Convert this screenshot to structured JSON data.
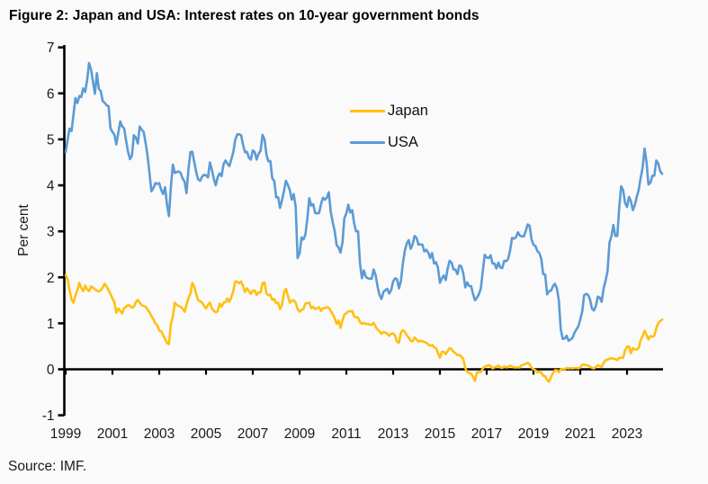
{
  "page": {
    "source": "Source: IMF."
  },
  "chart_data": {
    "type": "line",
    "title": "Figure 2: Japan and USA: Interest rates on 10-year government bonds",
    "xlabel": "",
    "ylabel": "Per cent",
    "x_frequency": "monthly",
    "x_range": [
      1999.0,
      2024.5
    ],
    "ylim": [
      -1,
      7
    ],
    "y_ticks": [
      -1,
      0,
      1,
      2,
      3,
      4,
      5,
      6,
      7
    ],
    "x_tick_years": [
      1999,
      2001,
      2003,
      2005,
      2007,
      2009,
      2011,
      2013,
      2015,
      2017,
      2019,
      2021,
      2023
    ],
    "grid": false,
    "legend_position": "upper center-right",
    "colors": {
      "japan": "#FFC012",
      "usa": "#5B9BD5",
      "axis": "#000000",
      "background": "#fafafa"
    },
    "legend": [
      {
        "name": "Japan",
        "color": "#FFC012"
      },
      {
        "name": "USA",
        "color": "#5B9BD5"
      }
    ],
    "series": [
      {
        "name": "Japan",
        "color": "#FFC012",
        "start_year": 1999,
        "values": [
          2.05,
          1.95,
          1.72,
          1.52,
          1.45,
          1.6,
          1.72,
          1.88,
          1.77,
          1.7,
          1.82,
          1.74,
          1.7,
          1.8,
          1.78,
          1.74,
          1.71,
          1.69,
          1.72,
          1.78,
          1.86,
          1.8,
          1.72,
          1.64,
          1.54,
          1.46,
          1.23,
          1.32,
          1.27,
          1.21,
          1.33,
          1.36,
          1.4,
          1.38,
          1.34,
          1.36,
          1.46,
          1.51,
          1.45,
          1.39,
          1.38,
          1.36,
          1.3,
          1.24,
          1.16,
          1.09,
          1.0,
          0.96,
          0.84,
          0.83,
          0.74,
          0.66,
          0.57,
          0.55,
          0.99,
          1.15,
          1.45,
          1.4,
          1.38,
          1.36,
          1.32,
          1.25,
          1.4,
          1.55,
          1.65,
          1.88,
          1.79,
          1.63,
          1.5,
          1.48,
          1.45,
          1.38,
          1.32,
          1.4,
          1.45,
          1.32,
          1.27,
          1.24,
          1.26,
          1.43,
          1.36,
          1.45,
          1.46,
          1.54,
          1.47,
          1.57,
          1.7,
          1.91,
          1.91,
          1.87,
          1.91,
          1.81,
          1.68,
          1.76,
          1.7,
          1.64,
          1.71,
          1.71,
          1.62,
          1.67,
          1.67,
          1.87,
          1.89,
          1.65,
          1.61,
          1.62,
          1.51,
          1.53,
          1.44,
          1.45,
          1.31,
          1.4,
          1.67,
          1.75,
          1.6,
          1.45,
          1.49,
          1.5,
          1.45,
          1.31,
          1.25,
          1.29,
          1.31,
          1.43,
          1.44,
          1.45,
          1.33,
          1.36,
          1.31,
          1.33,
          1.35,
          1.27,
          1.33,
          1.33,
          1.35,
          1.34,
          1.27,
          1.2,
          1.11,
          0.99,
          1.06,
          0.9,
          1.06,
          1.19,
          1.22,
          1.26,
          1.26,
          1.27,
          1.15,
          1.13,
          1.12,
          1.03,
          0.99,
          1.01,
          0.98,
          0.99,
          0.97,
          0.97,
          1.01,
          0.93,
          0.86,
          0.83,
          0.77,
          0.81,
          0.8,
          0.77,
          0.73,
          0.77,
          0.78,
          0.73,
          0.6,
          0.58,
          0.8,
          0.85,
          0.82,
          0.74,
          0.69,
          0.62,
          0.61,
          0.69,
          0.65,
          0.6,
          0.62,
          0.61,
          0.59,
          0.58,
          0.54,
          0.51,
          0.53,
          0.48,
          0.46,
          0.36,
          0.25,
          0.38,
          0.38,
          0.33,
          0.4,
          0.46,
          0.44,
          0.38,
          0.35,
          0.31,
          0.31,
          0.28,
          0.22,
          0.03,
          -0.06,
          -0.08,
          -0.1,
          -0.16,
          -0.25,
          -0.07,
          -0.06,
          -0.06,
          0.02,
          0.06,
          0.07,
          0.09,
          0.07,
          0.02,
          0.04,
          0.05,
          0.08,
          0.04,
          0.03,
          0.06,
          0.04,
          0.05,
          0.08,
          0.06,
          0.04,
          0.04,
          0.04,
          0.04,
          0.09,
          0.1,
          0.12,
          0.14,
          0.11,
          0.04,
          0.0,
          -0.02,
          -0.07,
          -0.05,
          -0.07,
          -0.14,
          -0.15,
          -0.23,
          -0.27,
          -0.17,
          -0.08,
          -0.02,
          -0.02,
          -0.06,
          0.0,
          0.01,
          0.0,
          0.03,
          0.02,
          0.03,
          0.02,
          0.03,
          0.03,
          0.02,
          0.04,
          0.1,
          0.1,
          0.09,
          0.08,
          0.06,
          0.03,
          0.02,
          0.05,
          0.09,
          0.07,
          0.05,
          0.14,
          0.2,
          0.21,
          0.23,
          0.24,
          0.23,
          0.22,
          0.2,
          0.25,
          0.25,
          0.25,
          0.41,
          0.49,
          0.5,
          0.35,
          0.46,
          0.43,
          0.43,
          0.47,
          0.64,
          0.72,
          0.84,
          0.75,
          0.65,
          0.72,
          0.71,
          0.73,
          0.89,
          1.0,
          1.05,
          1.08
        ]
      },
      {
        "name": "USA",
        "color": "#5B9BD5",
        "start_year": 1999,
        "values": [
          4.72,
          5.0,
          5.23,
          5.18,
          5.54,
          5.9,
          5.79,
          5.94,
          5.92,
          6.11,
          6.03,
          6.28,
          6.66,
          6.52,
          6.26,
          5.99,
          6.44,
          6.1,
          6.05,
          5.83,
          5.8,
          5.74,
          5.72,
          5.24,
          5.16,
          5.1,
          4.89,
          5.14,
          5.39,
          5.28,
          5.24,
          4.97,
          4.73,
          4.57,
          4.65,
          5.09,
          5.04,
          4.91,
          5.28,
          5.21,
          5.16,
          4.93,
          4.65,
          4.26,
          3.87,
          3.94,
          4.05,
          4.03,
          4.05,
          3.9,
          3.81,
          3.96,
          3.57,
          3.33,
          3.98,
          4.45,
          4.27,
          4.29,
          4.3,
          4.27,
          4.15,
          4.08,
          3.83,
          4.35,
          4.72,
          4.73,
          4.5,
          4.28,
          4.13,
          4.1,
          4.19,
          4.23,
          4.22,
          4.17,
          4.5,
          4.34,
          4.14,
          4.0,
          4.18,
          4.26,
          4.2,
          4.46,
          4.54,
          4.47,
          4.42,
          4.57,
          4.72,
          4.99,
          5.11,
          5.11,
          5.09,
          4.88,
          4.72,
          4.73,
          4.6,
          4.56,
          4.76,
          4.72,
          4.56,
          4.69,
          4.75,
          5.1,
          5.0,
          4.67,
          4.52,
          4.53,
          4.15,
          4.1,
          3.74,
          3.74,
          3.51,
          3.68,
          3.88,
          4.1,
          4.01,
          3.89,
          3.69,
          3.81,
          3.53,
          2.42,
          2.52,
          2.87,
          2.82,
          2.93,
          3.29,
          3.72,
          3.56,
          3.59,
          3.4,
          3.39,
          3.4,
          3.59,
          3.73,
          3.69,
          3.73,
          3.85,
          3.42,
          3.2,
          3.01,
          2.7,
          2.65,
          2.54,
          2.76,
          3.29,
          3.39,
          3.58,
          3.41,
          3.46,
          3.17,
          3.0,
          3.0,
          2.3,
          1.98,
          2.15,
          2.01,
          1.98,
          1.97,
          1.97,
          2.17,
          2.05,
          1.8,
          1.62,
          1.53,
          1.68,
          1.72,
          1.75,
          1.65,
          1.72,
          1.91,
          1.98,
          1.96,
          1.76,
          1.93,
          2.3,
          2.58,
          2.74,
          2.81,
          2.62,
          2.72,
          2.9,
          2.86,
          2.71,
          2.72,
          2.71,
          2.56,
          2.6,
          2.54,
          2.42,
          2.53,
          2.3,
          2.33,
          2.21,
          1.88,
          1.98,
          2.04,
          1.94,
          2.2,
          2.36,
          2.32,
          2.17,
          2.17,
          2.07,
          2.26,
          2.24,
          2.09,
          1.78,
          1.89,
          1.81,
          1.81,
          1.64,
          1.5,
          1.56,
          1.63,
          1.76,
          2.14,
          2.49,
          2.43,
          2.42,
          2.48,
          2.3,
          2.3,
          2.19,
          2.32,
          2.21,
          2.2,
          2.36,
          2.35,
          2.4,
          2.58,
          2.86,
          2.84,
          2.87,
          2.98,
          2.91,
          2.89,
          2.89,
          3.0,
          3.15,
          3.12,
          2.83,
          2.71,
          2.68,
          2.57,
          2.53,
          2.4,
          2.07,
          2.06,
          1.63,
          1.7,
          1.71,
          1.81,
          1.86,
          1.76,
          1.5,
          0.87,
          0.66,
          0.67,
          0.73,
          0.62,
          0.65,
          0.68,
          0.79,
          0.87,
          0.93,
          1.08,
          1.26,
          1.61,
          1.64,
          1.62,
          1.52,
          1.32,
          1.28,
          1.37,
          1.58,
          1.56,
          1.47,
          1.76,
          1.93,
          2.13,
          2.75,
          2.9,
          3.14,
          2.9,
          2.9,
          3.52,
          3.98,
          3.89,
          3.62,
          3.53,
          3.75,
          3.66,
          3.46,
          3.57,
          3.75,
          3.9,
          4.17,
          4.38,
          4.8,
          4.5,
          4.02,
          4.06,
          4.21,
          4.21,
          4.54,
          4.48,
          4.31,
          4.25
        ]
      }
    ]
  }
}
